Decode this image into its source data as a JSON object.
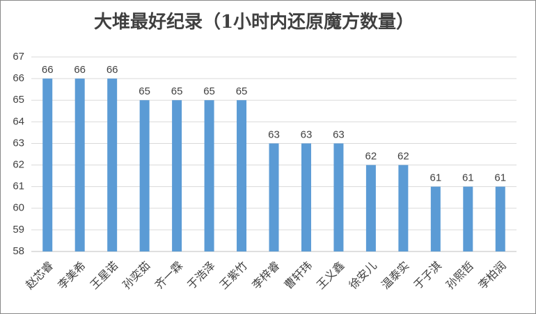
{
  "chart_data": {
    "type": "bar",
    "title": "大堆最好纪录（1小时内还原魔方数量）",
    "categories": [
      "赵芯睿",
      "李美希",
      "王星诺",
      "孙奕茹",
      "齐一霖",
      "于浩泽",
      "王紫竹",
      "李梓睿",
      "曹轩玮",
      "王义鑫",
      "徐安儿",
      "温泰实",
      "于子淇",
      "孙熙哲",
      "李柏润"
    ],
    "values": [
      66,
      66,
      66,
      65,
      65,
      65,
      65,
      63,
      63,
      63,
      62,
      62,
      61,
      61,
      61
    ],
    "color": "#5b9bd5",
    "ylim": [
      58,
      67
    ],
    "yticks": [
      58,
      59,
      60,
      61,
      62,
      63,
      64,
      65,
      66,
      67
    ],
    "grid": true
  }
}
